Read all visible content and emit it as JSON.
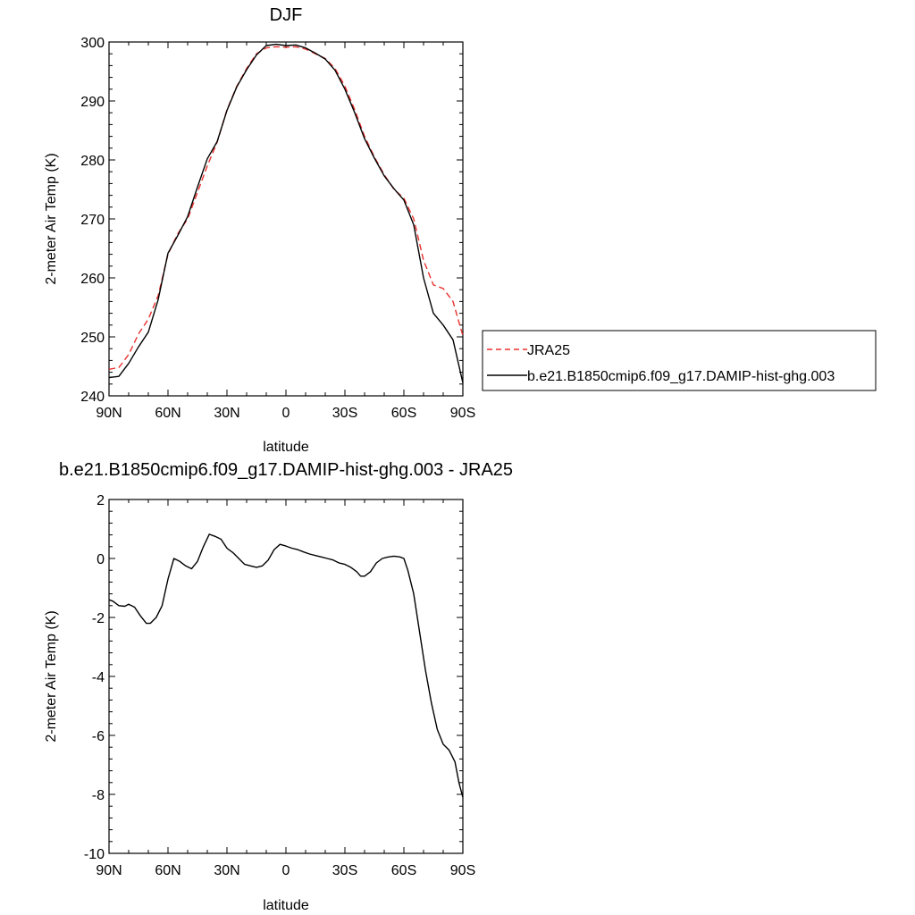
{
  "chart_data": [
    {
      "type": "line",
      "title": "DJF",
      "xlabel": "latitude",
      "ylabel": "2-meter Air Temp (K)",
      "xlim": [
        90,
        -90
      ],
      "ylim": [
        240,
        300
      ],
      "x_ticks": [
        90,
        60,
        30,
        0,
        -30,
        -60,
        -90
      ],
      "x_tick_labels": [
        "90N",
        "60N",
        "30N",
        "0",
        "30S",
        "60S",
        "90S"
      ],
      "y_ticks": [
        240,
        250,
        260,
        270,
        280,
        290,
        300
      ],
      "y_tick_labels": [
        "240",
        "250",
        "260",
        "270",
        "280",
        "290",
        "300"
      ],
      "legend": "outside-right",
      "grid": false,
      "series": [
        {
          "name": "JRA25",
          "color": "#e8312f",
          "style": "dashed",
          "x": [
            90,
            85,
            80,
            75,
            70,
            65,
            60,
            55,
            50,
            45,
            40,
            35,
            30,
            25,
            20,
            15,
            10,
            5,
            0,
            -5,
            -10,
            -15,
            -20,
            -25,
            -30,
            -35,
            -40,
            -45,
            -50,
            -55,
            -60,
            -65,
            -70,
            -75,
            -80,
            -85,
            -90
          ],
          "values": [
            244.5,
            244.8,
            247.0,
            250.5,
            253.0,
            257.0,
            264.0,
            267.5,
            270.0,
            274.5,
            279.0,
            283.0,
            288.5,
            292.5,
            295.5,
            298.0,
            299.0,
            299.2,
            299.1,
            299.2,
            298.8,
            298.0,
            297.2,
            295.5,
            292.5,
            288.5,
            284.0,
            280.5,
            277.5,
            275.0,
            273.5,
            270.0,
            263.0,
            258.8,
            258.2,
            256.0,
            250.2
          ]
        },
        {
          "name": "b.e21.B1850cmip6.f09_g17.DAMIP-hist-ghg.003",
          "color": "#000000",
          "style": "solid",
          "x": [
            90,
            85,
            80,
            75,
            70,
            65,
            60,
            55,
            50,
            45,
            40,
            35,
            30,
            25,
            20,
            15,
            10,
            5,
            0,
            -5,
            -10,
            -15,
            -20,
            -25,
            -30,
            -35,
            -40,
            -45,
            -50,
            -55,
            -60,
            -65,
            -70,
            -75,
            -80,
            -85,
            -90
          ],
          "values": [
            243.1,
            243.3,
            245.5,
            248.3,
            250.8,
            256.3,
            264.2,
            267.2,
            270.4,
            275.4,
            280.2,
            283.1,
            288.4,
            292.4,
            295.3,
            297.8,
            299.4,
            299.6,
            299.4,
            299.5,
            299.0,
            298.1,
            297.1,
            295.2,
            292.0,
            288.0,
            283.6,
            280.3,
            277.3,
            275.1,
            273.2,
            269.0,
            260.0,
            254.0,
            252.0,
            249.5,
            242.2
          ]
        }
      ]
    },
    {
      "type": "line",
      "title": "b.e21.B1850cmip6.f09_g17.DAMIP-hist-ghg.003 - JRA25",
      "xlabel": "latitude",
      "ylabel": "2-meter Air Temp (K)",
      "xlim": [
        90,
        -90
      ],
      "ylim": [
        -10,
        2
      ],
      "x_ticks": [
        90,
        60,
        30,
        0,
        -30,
        -60,
        -90
      ],
      "x_tick_labels": [
        "90N",
        "60N",
        "30N",
        "0",
        "30S",
        "60S",
        "90S"
      ],
      "y_ticks": [
        -10,
        -8,
        -6,
        -4,
        -2,
        0,
        2
      ],
      "y_tick_labels": [
        "-10",
        "-8",
        "-6",
        "-4",
        "-2",
        "0",
        "2"
      ],
      "grid": false,
      "series": [
        {
          "color": "#000000",
          "style": "solid",
          "x": [
            90,
            88,
            85,
            82,
            80,
            77,
            74,
            71,
            69,
            66,
            63,
            60,
            57,
            54,
            51,
            48,
            45,
            42,
            39,
            36,
            33,
            30,
            27,
            24,
            21,
            18,
            15,
            12,
            9,
            6,
            3,
            0,
            -3,
            -6,
            -9,
            -12,
            -15,
            -18,
            -21,
            -24,
            -27,
            -30,
            -33,
            -36,
            -38,
            -40,
            -43,
            -46,
            -49,
            -52,
            -55,
            -58,
            -60,
            -62,
            -65,
            -68,
            -71,
            -74,
            -77,
            -80,
            -83,
            -86,
            -88,
            -90
          ],
          "values": [
            -1.4,
            -1.45,
            -1.6,
            -1.62,
            -1.55,
            -1.65,
            -1.95,
            -2.2,
            -2.2,
            -2.0,
            -1.6,
            -0.7,
            0.0,
            -0.1,
            -0.25,
            -0.35,
            -0.1,
            0.4,
            0.82,
            0.75,
            0.65,
            0.35,
            0.2,
            0.0,
            -0.2,
            -0.25,
            -0.3,
            -0.25,
            -0.05,
            0.3,
            0.48,
            0.42,
            0.35,
            0.3,
            0.22,
            0.15,
            0.1,
            0.05,
            0.0,
            -0.05,
            -0.15,
            -0.2,
            -0.3,
            -0.45,
            -0.6,
            -0.6,
            -0.45,
            -0.15,
            0.0,
            0.05,
            0.08,
            0.05,
            0.0,
            -0.4,
            -1.2,
            -2.5,
            -3.8,
            -4.9,
            -5.8,
            -6.3,
            -6.5,
            -6.9,
            -7.6,
            -8.1
          ]
        }
      ]
    }
  ]
}
